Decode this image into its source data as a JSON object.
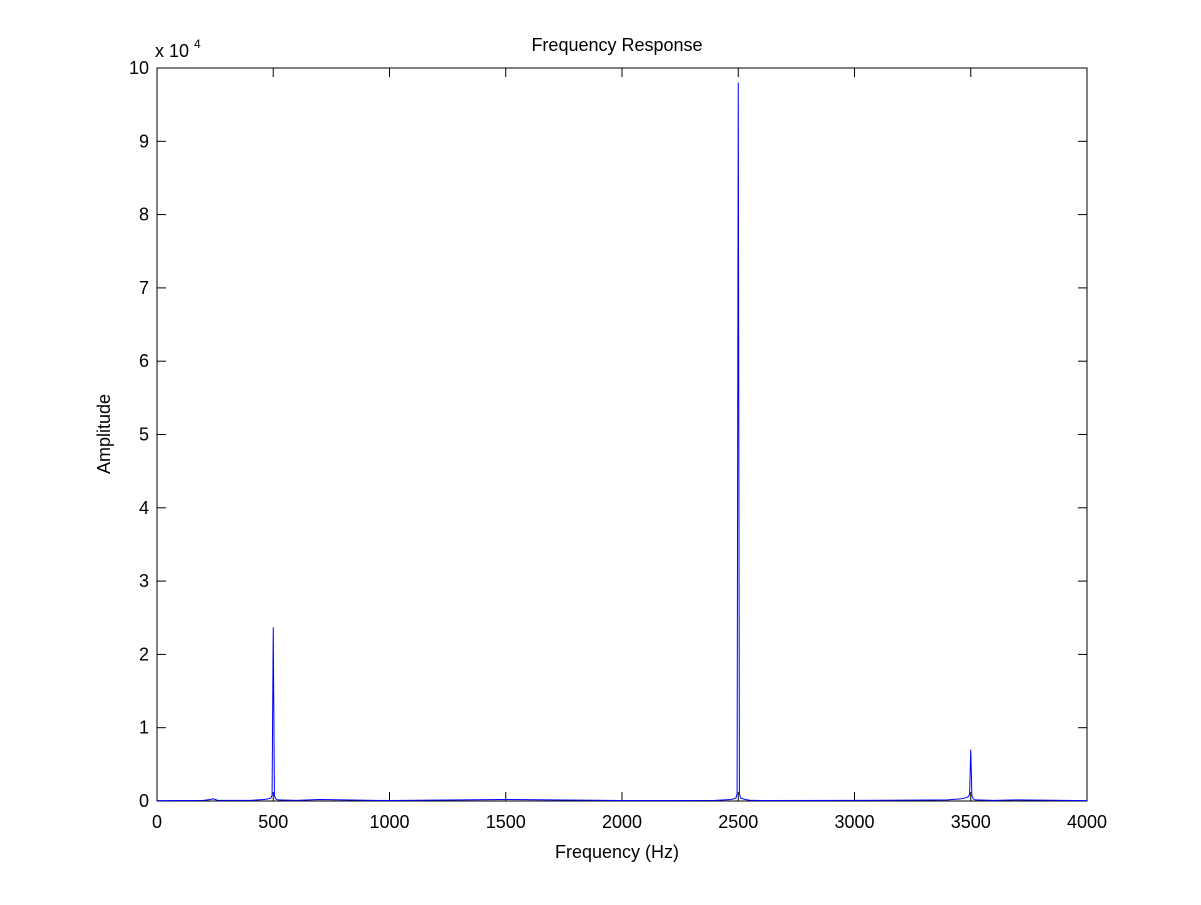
{
  "chart_data": {
    "type": "line",
    "title": "Frequency Response",
    "xlabel": "Frequency (Hz)",
    "ylabel": "Amplitude",
    "xlim": [
      0,
      4000
    ],
    "ylim": [
      0,
      100000
    ],
    "xticks": [
      0,
      500,
      1000,
      1500,
      2000,
      2500,
      3000,
      3500,
      4000
    ],
    "yticks": [
      0,
      10000,
      20000,
      30000,
      40000,
      50000,
      60000,
      70000,
      80000,
      90000,
      100000
    ],
    "ytick_labels": [
      "0",
      "1",
      "2",
      "3",
      "4",
      "5",
      "6",
      "7",
      "8",
      "9",
      "10"
    ],
    "y_multiplier_base": "x 10",
    "y_multiplier_exponent": "4",
    "grid": false,
    "line_color": "#0000ff",
    "series": [
      {
        "x": [
          0,
          200,
          230,
          240,
          260,
          400,
          460,
          480,
          490,
          495,
          500,
          505,
          510,
          520,
          600,
          700,
          1000,
          1500,
          2000,
          2400,
          2470,
          2490,
          2495,
          2500,
          2505,
          2510,
          2530,
          2550,
          2600,
          3000,
          3400,
          3460,
          3480,
          3490,
          3495,
          3500,
          3505,
          3510,
          3520,
          3600,
          3700,
          4000
        ],
        "y": [
          50,
          80,
          200,
          300,
          100,
          80,
          200,
          300,
          400,
          800,
          23700,
          800,
          300,
          150,
          80,
          200,
          60,
          200,
          60,
          80,
          200,
          400,
          1000,
          98000,
          1000,
          400,
          200,
          100,
          60,
          80,
          150,
          300,
          450,
          600,
          900,
          7000,
          700,
          300,
          150,
          80,
          150,
          50
        ]
      }
    ]
  }
}
